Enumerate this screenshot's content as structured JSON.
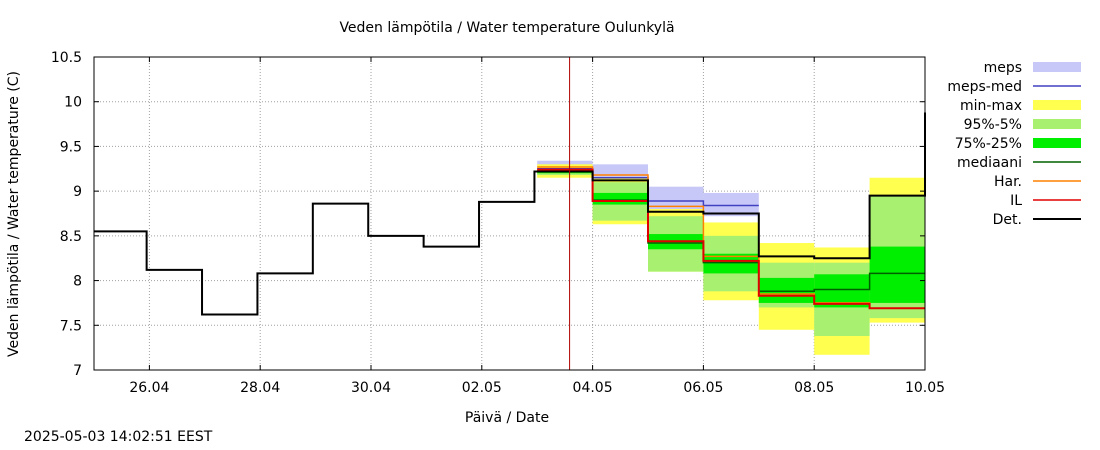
{
  "chart_data": {
    "type": "line",
    "title": "Veden lämpötila / Water temperature Oulunkylä",
    "xlabel": "Päivä / Date",
    "ylabel": "Veden lämpötila / Water temperature (C)",
    "ylim": [
      7,
      10.5
    ],
    "yticks": [
      "7",
      "7.5",
      "8",
      "8.5",
      "9",
      "9.5",
      "10",
      "10.5"
    ],
    "xlim": [
      "2025-04-25",
      "2025-05-10"
    ],
    "xticks": [
      {
        "date": "2025-04-26",
        "label": "26.04"
      },
      {
        "date": "2025-04-28",
        "label": "28.04"
      },
      {
        "date": "2025-04-30",
        "label": "30.04"
      },
      {
        "date": "2025-05-02",
        "label": "02.05"
      },
      {
        "date": "2025-05-04",
        "label": "04.05"
      },
      {
        "date": "2025-05-06",
        "label": "06.05"
      },
      {
        "date": "2025-05-08",
        "label": "08.05"
      },
      {
        "date": "2025-05-10",
        "label": "10.05"
      }
    ],
    "grid": true,
    "legend_position": "right",
    "now_marker": "2025-05-03 14:02",
    "colors": {
      "meps": "#c8c8f8",
      "meps_med": "#4040c0",
      "min_max": "#ffff50",
      "p95_5": "#a8f070",
      "p75_25": "#00ee00",
      "mediaani": "#006000",
      "har": "#ff8000",
      "il": "#e00000",
      "det": "#000000",
      "now_line": "#b00000"
    },
    "legend": [
      {
        "key": "meps",
        "label": "meps",
        "style": "band"
      },
      {
        "key": "meps_med",
        "label": "meps-med",
        "style": "line"
      },
      {
        "key": "min_max",
        "label": "min-max",
        "style": "band"
      },
      {
        "key": "p95_5",
        "label": "95%-5%",
        "style": "band"
      },
      {
        "key": "p75_25",
        "label": "75%-25%",
        "style": "band"
      },
      {
        "key": "mediaani",
        "label": "mediaani",
        "style": "line"
      },
      {
        "key": "har",
        "label": "Har.",
        "style": "line"
      },
      {
        "key": "il",
        "label": "IL",
        "style": "line"
      },
      {
        "key": "det",
        "label": "Det.",
        "style": "line"
      }
    ],
    "observed": [
      {
        "date": "2025-04-25",
        "value": 8.55
      },
      {
        "date": "2025-04-26",
        "value": 8.12
      },
      {
        "date": "2025-04-27",
        "value": 7.62
      },
      {
        "date": "2025-04-28",
        "value": 8.08
      },
      {
        "date": "2025-04-29",
        "value": 8.86
      },
      {
        "date": "2025-04-30",
        "value": 8.5
      },
      {
        "date": "2025-05-01",
        "value": 8.38
      },
      {
        "date": "2025-05-02",
        "value": 8.88
      },
      {
        "date": "2025-05-03",
        "value": 9.22
      }
    ],
    "forecast_days": [
      "2025-05-03",
      "2025-05-04",
      "2025-05-05",
      "2025-05-06",
      "2025-05-07",
      "2025-05-08",
      "2025-05-09"
    ],
    "meps_band": [
      [
        9.18,
        9.34
      ],
      [
        9.1,
        9.3
      ],
      [
        8.78,
        9.05
      ],
      [
        8.72,
        8.98
      ]
    ],
    "meps_med": [
      9.25,
      9.15,
      8.89,
      8.84
    ],
    "min_max": [
      [
        9.15,
        9.3
      ],
      [
        8.63,
        9.15
      ],
      [
        8.1,
        8.8
      ],
      [
        7.78,
        8.65
      ],
      [
        7.45,
        8.42
      ],
      [
        7.17,
        8.37
      ],
      [
        7.53,
        9.15
      ]
    ],
    "p95_5": [
      [
        9.18,
        9.26
      ],
      [
        8.67,
        9.1
      ],
      [
        8.1,
        8.72
      ],
      [
        7.88,
        8.5
      ],
      [
        7.7,
        8.2
      ],
      [
        7.38,
        8.2
      ],
      [
        7.58,
        8.95
      ]
    ],
    "p75_25": [
      [
        9.2,
        9.24
      ],
      [
        8.85,
        8.98
      ],
      [
        8.35,
        8.52
      ],
      [
        8.08,
        8.3
      ],
      [
        7.75,
        8.03
      ],
      [
        7.7,
        8.07
      ],
      [
        7.75,
        8.38
      ]
    ],
    "mediaani": [
      9.22,
      8.9,
      8.42,
      8.2,
      7.88,
      7.9,
      8.08
    ],
    "har": [
      9.27,
      9.18,
      8.83,
      8.27,
      7.85,
      7.75,
      7.69
    ],
    "il": [
      9.24,
      8.89,
      8.44,
      8.22,
      7.83,
      7.74,
      7.69
    ],
    "det": [
      9.22,
      9.12,
      8.77,
      8.75,
      8.27,
      8.25,
      8.95
    ],
    "det_end": 9.88
  },
  "footer": {
    "timestamp": "2025-05-03 14:02:51 EEST"
  }
}
